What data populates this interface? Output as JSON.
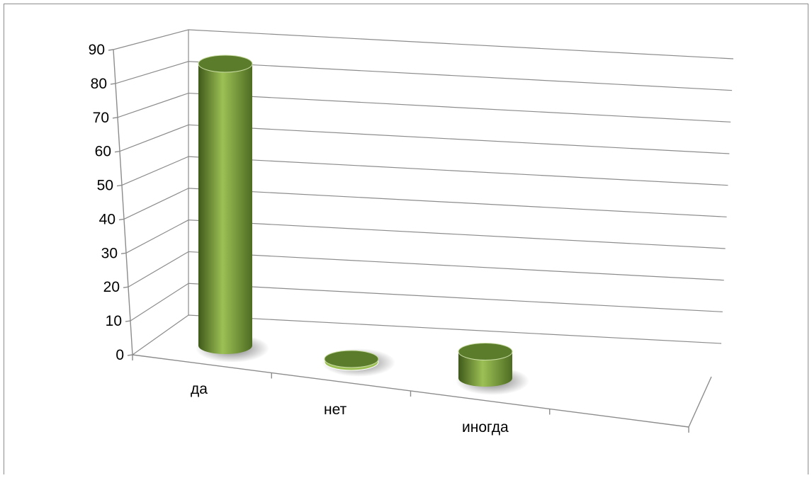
{
  "chart_data": {
    "type": "bar",
    "style": "3d-cylinder",
    "categories": [
      "да",
      "нет",
      "иногда"
    ],
    "values": [
      85,
      0.5,
      8
    ],
    "ylim": [
      0,
      90
    ],
    "yticks": [
      0,
      10,
      20,
      30,
      40,
      50,
      60,
      70,
      80,
      90
    ],
    "grid": true,
    "legend": "none",
    "colors": {
      "bar": "#6a8f2e",
      "bar_light": "#9dc055",
      "bar_dark": "#3f5a1a",
      "bar_top": "#5b7d2b",
      "grid": "#8c8c8c"
    }
  }
}
